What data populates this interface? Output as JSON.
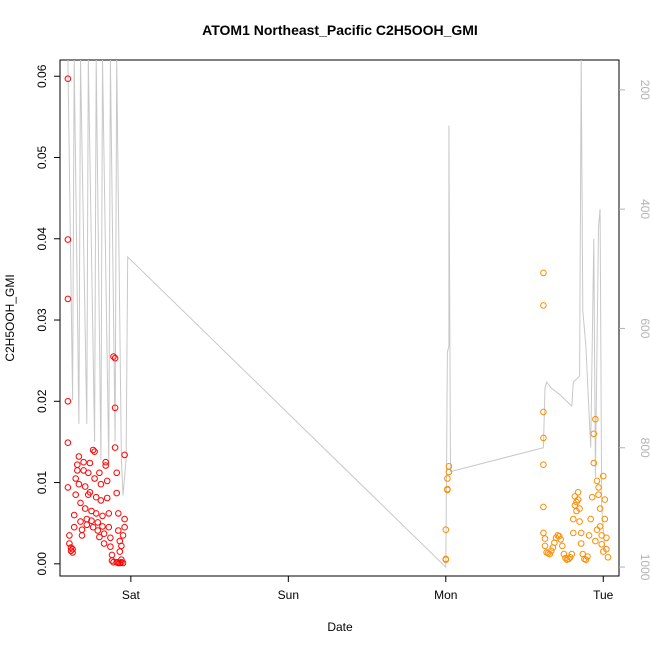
{
  "chart_data": {
    "type": "scatter",
    "title": "ATOM1 Northeast_Pacific C2H5OOH_GMI",
    "xlabel": "Date",
    "ylabel": "C2H5OOH_GMI",
    "x_unit": "days",
    "xlim": [
      -0.45,
      3.1
    ],
    "ylim": [
      -0.0015,
      0.062
    ],
    "x_ticks": [
      {
        "value": 0,
        "label": "Sat"
      },
      {
        "value": 1,
        "label": "Sun"
      },
      {
        "value": 2,
        "label": "Mon"
      },
      {
        "value": 3,
        "label": "Tue"
      }
    ],
    "y_ticks": [
      {
        "value": 0.0,
        "label": "0.00"
      },
      {
        "value": 0.01,
        "label": "0.01"
      },
      {
        "value": 0.02,
        "label": "0.02"
      },
      {
        "value": 0.03,
        "label": "0.03"
      },
      {
        "value": 0.04,
        "label": "0.04"
      },
      {
        "value": 0.05,
        "label": "0.05"
      },
      {
        "value": 0.06,
        "label": "0.06"
      }
    ],
    "y2lim": [
      1015,
      150
    ],
    "y2_ticks": [
      {
        "value": 200,
        "label": "200"
      },
      {
        "value": 400,
        "label": "400"
      },
      {
        "value": 600,
        "label": "600"
      },
      {
        "value": 800,
        "label": "800"
      },
      {
        "value": 1000,
        "label": "1000"
      }
    ],
    "grid": false,
    "colors": {
      "flight1": "#ff0000",
      "flight2": "#ff8c00",
      "pressure": "#c8c8c8"
    },
    "series": [
      {
        "color": "#ff0000",
        "points": [
          [
            -0.4,
            0.0597
          ],
          [
            -0.4,
            0.0399
          ],
          [
            -0.4,
            0.0326
          ],
          [
            -0.4,
            0.02
          ],
          [
            -0.4,
            0.0149
          ],
          [
            -0.4,
            0.0094
          ],
          [
            -0.39,
            0.0035
          ],
          [
            -0.39,
            0.0025
          ],
          [
            -0.38,
            0.002
          ],
          [
            -0.38,
            0.0016
          ],
          [
            -0.37,
            0.0014
          ],
          [
            -0.37,
            0.0018
          ],
          [
            -0.36,
            0.0045
          ],
          [
            -0.36,
            0.006
          ],
          [
            -0.35,
            0.0085
          ],
          [
            -0.35,
            0.0105
          ],
          [
            -0.34,
            0.0115
          ],
          [
            -0.34,
            0.0122
          ],
          [
            -0.33,
            0.0132
          ],
          [
            -0.33,
            0.0098
          ],
          [
            -0.32,
            0.0075
          ],
          [
            -0.32,
            0.0052
          ],
          [
            -0.31,
            0.0042
          ],
          [
            -0.31,
            0.0035
          ],
          [
            -0.3,
            0.0125
          ],
          [
            -0.3,
            0.0115
          ],
          [
            -0.29,
            0.0095
          ],
          [
            -0.29,
            0.0068
          ],
          [
            -0.28,
            0.0055
          ],
          [
            -0.28,
            0.0048
          ],
          [
            -0.27,
            0.0085
          ],
          [
            -0.27,
            0.0112
          ],
          [
            -0.26,
            0.0124
          ],
          [
            -0.26,
            0.0088
          ],
          [
            -0.25,
            0.0065
          ],
          [
            -0.25,
            0.0053
          ],
          [
            -0.24,
            0.0045
          ],
          [
            -0.24,
            0.014
          ],
          [
            -0.23,
            0.0138
          ],
          [
            -0.23,
            0.0105
          ],
          [
            -0.22,
            0.0082
          ],
          [
            -0.22,
            0.0062
          ],
          [
            -0.21,
            0.0051
          ],
          [
            -0.21,
            0.0041
          ],
          [
            -0.2,
            0.0033
          ],
          [
            -0.2,
            0.0112
          ],
          [
            -0.19,
            0.0098
          ],
          [
            -0.19,
            0.0078
          ],
          [
            -0.18,
            0.0059
          ],
          [
            -0.18,
            0.0046
          ],
          [
            -0.17,
            0.0037
          ],
          [
            -0.17,
            0.0025
          ],
          [
            -0.16,
            0.0125
          ],
          [
            -0.16,
            0.0121
          ],
          [
            -0.15,
            0.0102
          ],
          [
            -0.15,
            0.0081
          ],
          [
            -0.14,
            0.0062
          ],
          [
            -0.14,
            0.0045
          ],
          [
            -0.13,
            0.0032
          ],
          [
            -0.13,
            0.0021
          ],
          [
            -0.12,
            0.0011
          ],
          [
            -0.12,
            0.0004
          ],
          [
            -0.11,
            0.0002
          ],
          [
            -0.11,
            0.0255
          ],
          [
            -0.1,
            0.0253
          ],
          [
            -0.1,
            0.0192
          ],
          [
            -0.1,
            0.0143
          ],
          [
            -0.09,
            0.0112
          ],
          [
            -0.09,
            0.0087
          ],
          [
            -0.08,
            0.0062
          ],
          [
            -0.08,
            0.0041
          ],
          [
            -0.07,
            0.0028
          ],
          [
            -0.07,
            0.0015
          ],
          [
            -0.06,
            0.0005
          ],
          [
            -0.06,
            0.0002
          ],
          [
            -0.05,
            0.0001
          ],
          [
            -0.04,
            0.0134
          ],
          [
            -0.04,
            0.0055
          ],
          [
            -0.04,
            0.0045
          ],
          [
            -0.05,
            0.0035
          ],
          [
            -0.06,
            0.0022
          ],
          [
            -0.09,
            0.0002
          ],
          [
            -0.08,
            0.0001
          ],
          [
            -0.07,
            0.0001
          ]
        ]
      },
      {
        "color": "#ff8c00",
        "points": [
          [
            2.0,
            0.0006
          ],
          [
            2.0,
            0.0005
          ],
          [
            2.0,
            0.0042
          ],
          [
            2.01,
            0.0092
          ],
          [
            2.01,
            0.0091
          ],
          [
            2.01,
            0.0105
          ],
          [
            2.02,
            0.0113
          ],
          [
            2.02,
            0.012
          ],
          [
            2.62,
            0.0358
          ],
          [
            2.62,
            0.0318
          ],
          [
            2.62,
            0.0187
          ],
          [
            2.62,
            0.0155
          ],
          [
            2.62,
            0.0122
          ],
          [
            2.62,
            0.007
          ],
          [
            2.62,
            0.0038
          ],
          [
            2.63,
            0.0031
          ],
          [
            2.63,
            0.0022
          ],
          [
            2.64,
            0.0014
          ],
          [
            2.65,
            0.0013
          ],
          [
            2.66,
            0.0012
          ],
          [
            2.67,
            0.0016
          ],
          [
            2.68,
            0.002
          ],
          [
            2.69,
            0.0026
          ],
          [
            2.7,
            0.0032
          ],
          [
            2.71,
            0.0035
          ],
          [
            2.72,
            0.0034
          ],
          [
            2.73,
            0.003
          ],
          [
            2.74,
            0.0022
          ],
          [
            2.75,
            0.0012
          ],
          [
            2.76,
            0.0007
          ],
          [
            2.77,
            0.0005
          ],
          [
            2.78,
            0.0006
          ],
          [
            2.79,
            0.0008
          ],
          [
            2.8,
            0.0012
          ],
          [
            2.81,
            0.0038
          ],
          [
            2.81,
            0.0055
          ],
          [
            2.82,
            0.0072
          ],
          [
            2.82,
            0.0083
          ],
          [
            2.83,
            0.0076
          ],
          [
            2.83,
            0.0065
          ],
          [
            2.84,
            0.0088
          ],
          [
            2.84,
            0.0079
          ],
          [
            2.85,
            0.0068
          ],
          [
            2.85,
            0.0052
          ],
          [
            2.86,
            0.0038
          ],
          [
            2.86,
            0.0025
          ],
          [
            2.87,
            0.0012
          ],
          [
            2.88,
            0.0006
          ],
          [
            2.89,
            0.0005
          ],
          [
            2.9,
            0.0009
          ],
          [
            2.91,
            0.0035
          ],
          [
            2.92,
            0.0055
          ],
          [
            2.93,
            0.0082
          ],
          [
            2.94,
            0.0124
          ],
          [
            2.94,
            0.016
          ],
          [
            2.95,
            0.0178
          ],
          [
            2.96,
            0.0102
          ],
          [
            2.97,
            0.0094
          ],
          [
            2.97,
            0.0085
          ],
          [
            2.98,
            0.0068
          ],
          [
            2.98,
            0.0046
          ],
          [
            2.99,
            0.0035
          ],
          [
            2.99,
            0.0024
          ],
          [
            3.0,
            0.0015
          ],
          [
            3.0,
            0.0108
          ],
          [
            3.01,
            0.0079
          ],
          [
            3.01,
            0.0055
          ],
          [
            3.02,
            0.0032
          ],
          [
            3.02,
            0.0018
          ],
          [
            3.03,
            0.0008
          ],
          [
            2.96,
            0.0042
          ],
          [
            2.95,
            0.0028
          ]
        ]
      }
    ],
    "pressure_line": [
      [
        -0.4,
        150
      ],
      [
        -0.37,
        720
      ],
      [
        -0.36,
        150
      ],
      [
        -0.33,
        760
      ],
      [
        -0.32,
        150
      ],
      [
        -0.28,
        760
      ],
      [
        -0.27,
        150
      ],
      [
        -0.23,
        790
      ],
      [
        -0.22,
        150
      ],
      [
        -0.19,
        820
      ],
      [
        -0.18,
        150
      ],
      [
        -0.14,
        830
      ],
      [
        -0.13,
        150
      ],
      [
        -0.1,
        790
      ],
      [
        -0.09,
        150
      ],
      [
        -0.06,
        820
      ],
      [
        -0.05,
        880
      ],
      [
        -0.03,
        820
      ],
      [
        -0.02,
        480
      ],
      [
        2.0,
        1000
      ],
      [
        2.01,
        640
      ],
      [
        2.02,
        630
      ],
      [
        2.02,
        260
      ],
      [
        2.03,
        840
      ],
      [
        2.62,
        800
      ],
      [
        2.63,
        700
      ],
      [
        2.64,
        690
      ],
      [
        2.67,
        700
      ],
      [
        2.72,
        710
      ],
      [
        2.8,
        730
      ],
      [
        2.81,
        690
      ],
      [
        2.85,
        680
      ],
      [
        2.86,
        150
      ],
      [
        2.87,
        570
      ],
      [
        2.89,
        630
      ],
      [
        2.92,
        800
      ],
      [
        2.94,
        450
      ],
      [
        2.95,
        850
      ],
      [
        2.97,
        430
      ],
      [
        2.98,
        400
      ],
      [
        2.99,
        900
      ],
      [
        3.01,
        970
      ]
    ]
  }
}
